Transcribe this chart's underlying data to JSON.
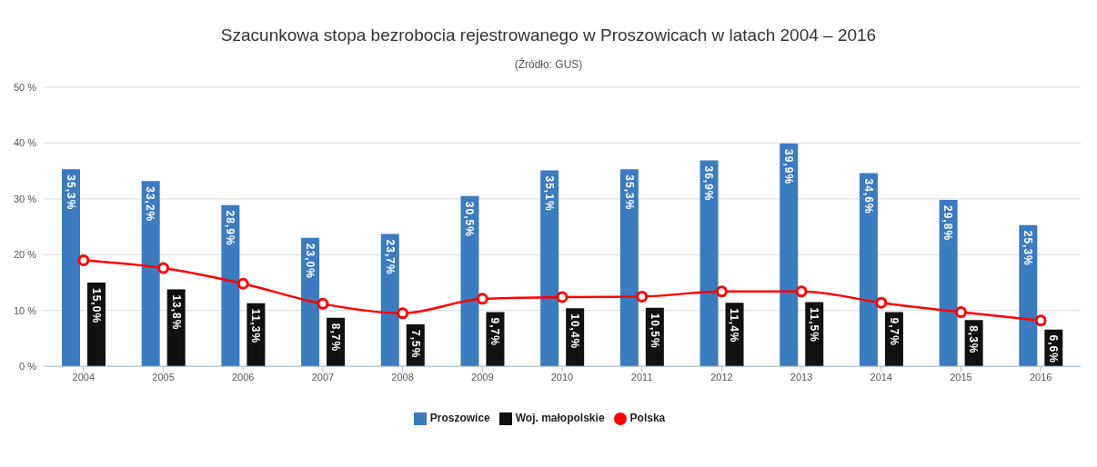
{
  "chart_data": {
    "type": "bar",
    "title": "Szacunkowa stopa bezrobocia rejestrowanego w Proszowicach w latach 2004 – 2016",
    "subtitle": "(Źródło: GUS)",
    "categories": [
      "2004",
      "2005",
      "2006",
      "2007",
      "2008",
      "2009",
      "2010",
      "2011",
      "2012",
      "2013",
      "2014",
      "2015",
      "2016"
    ],
    "series": [
      {
        "name": "Proszowice",
        "color": "#3b7bbf",
        "values": [
          35.3,
          33.2,
          28.9,
          23.0,
          23.7,
          30.5,
          35.1,
          35.3,
          36.9,
          39.9,
          34.6,
          29.8,
          25.3
        ],
        "value_labels": [
          "35,3%",
          "33,2%",
          "28,9%",
          "23,0%",
          "23,7%",
          "30,5%",
          "35,1%",
          "35,3%",
          "36,9%",
          "39,9%",
          "34,6%",
          "29,8%",
          "25,3%"
        ]
      },
      {
        "name": "Woj. małopolskie",
        "color": "#111111",
        "values": [
          15.0,
          13.8,
          11.3,
          8.7,
          7.5,
          9.7,
          10.4,
          10.5,
          11.4,
          11.5,
          9.7,
          8.3,
          6.6
        ],
        "value_labels": [
          "15,0%",
          "13,8%",
          "11,3%",
          "8,7%",
          "7,5%",
          "9,7%",
          "10,4%",
          "10,5%",
          "11,4%",
          "11,5%",
          "9,7%",
          "8,3%",
          "6,6%"
        ]
      },
      {
        "name": "Polska",
        "type": "line",
        "color": "#ff0000",
        "values": [
          19.0,
          17.6,
          14.8,
          11.2,
          9.5,
          12.1,
          12.4,
          12.5,
          13.4,
          13.4,
          11.4,
          9.7,
          8.2
        ]
      }
    ],
    "ylim": [
      0,
      50
    ],
    "yticks": [
      {
        "value": 0,
        "label": "0 %"
      },
      {
        "value": 10,
        "label": "10 %"
      },
      {
        "value": 20,
        "label": "20 %"
      },
      {
        "value": 30,
        "label": "30 %"
      },
      {
        "value": 40,
        "label": "40 %"
      },
      {
        "value": 50,
        "label": "50 %"
      }
    ],
    "grid": "y",
    "legend": "bottom",
    "marker": "circle",
    "line_style": "solid"
  }
}
